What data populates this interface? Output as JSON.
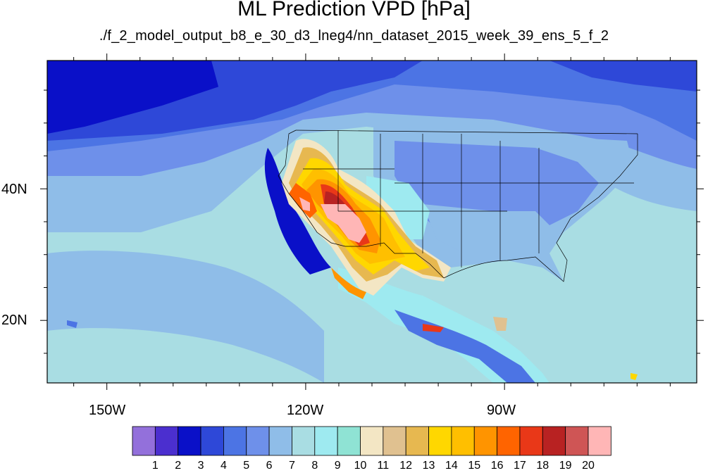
{
  "title": "ML Prediction VPD [hPa]",
  "subtitle": "./f_2_model_output_b8_e_30_d3_lneg4/nn_dataset_2015_week_39_ens_5_f_2",
  "axes": {
    "lon_labels": [
      "150W",
      "120W",
      "90W"
    ],
    "lat_labels": [
      "40N",
      "20N"
    ],
    "lon_range": [
      -159,
      -61
    ],
    "lat_range": [
      10.5,
      59.5
    ]
  },
  "colorbar": {
    "labels": [
      "1",
      "2",
      "3",
      "4",
      "5",
      "6",
      "7",
      "8",
      "9",
      "10",
      "11",
      "12",
      "13",
      "14",
      "15",
      "16",
      "17",
      "18",
      "19",
      "20"
    ],
    "colors": [
      "#9370db",
      "#4b2fcf",
      "#0a10c8",
      "#2e48d8",
      "#4c74e4",
      "#6e90ea",
      "#8fbde8",
      "#a9dde3",
      "#9eeaf0",
      "#8fe3d4",
      "#f3e6c4",
      "#e0c190",
      "#e7b850",
      "#ffd700",
      "#ffbf00",
      "#ff9400",
      "#ff6400",
      "#e93818",
      "#b82222",
      "#cf5555",
      "#ffb6b6"
    ]
  },
  "icons": {
    "map": "vpd-contour-map"
  }
}
